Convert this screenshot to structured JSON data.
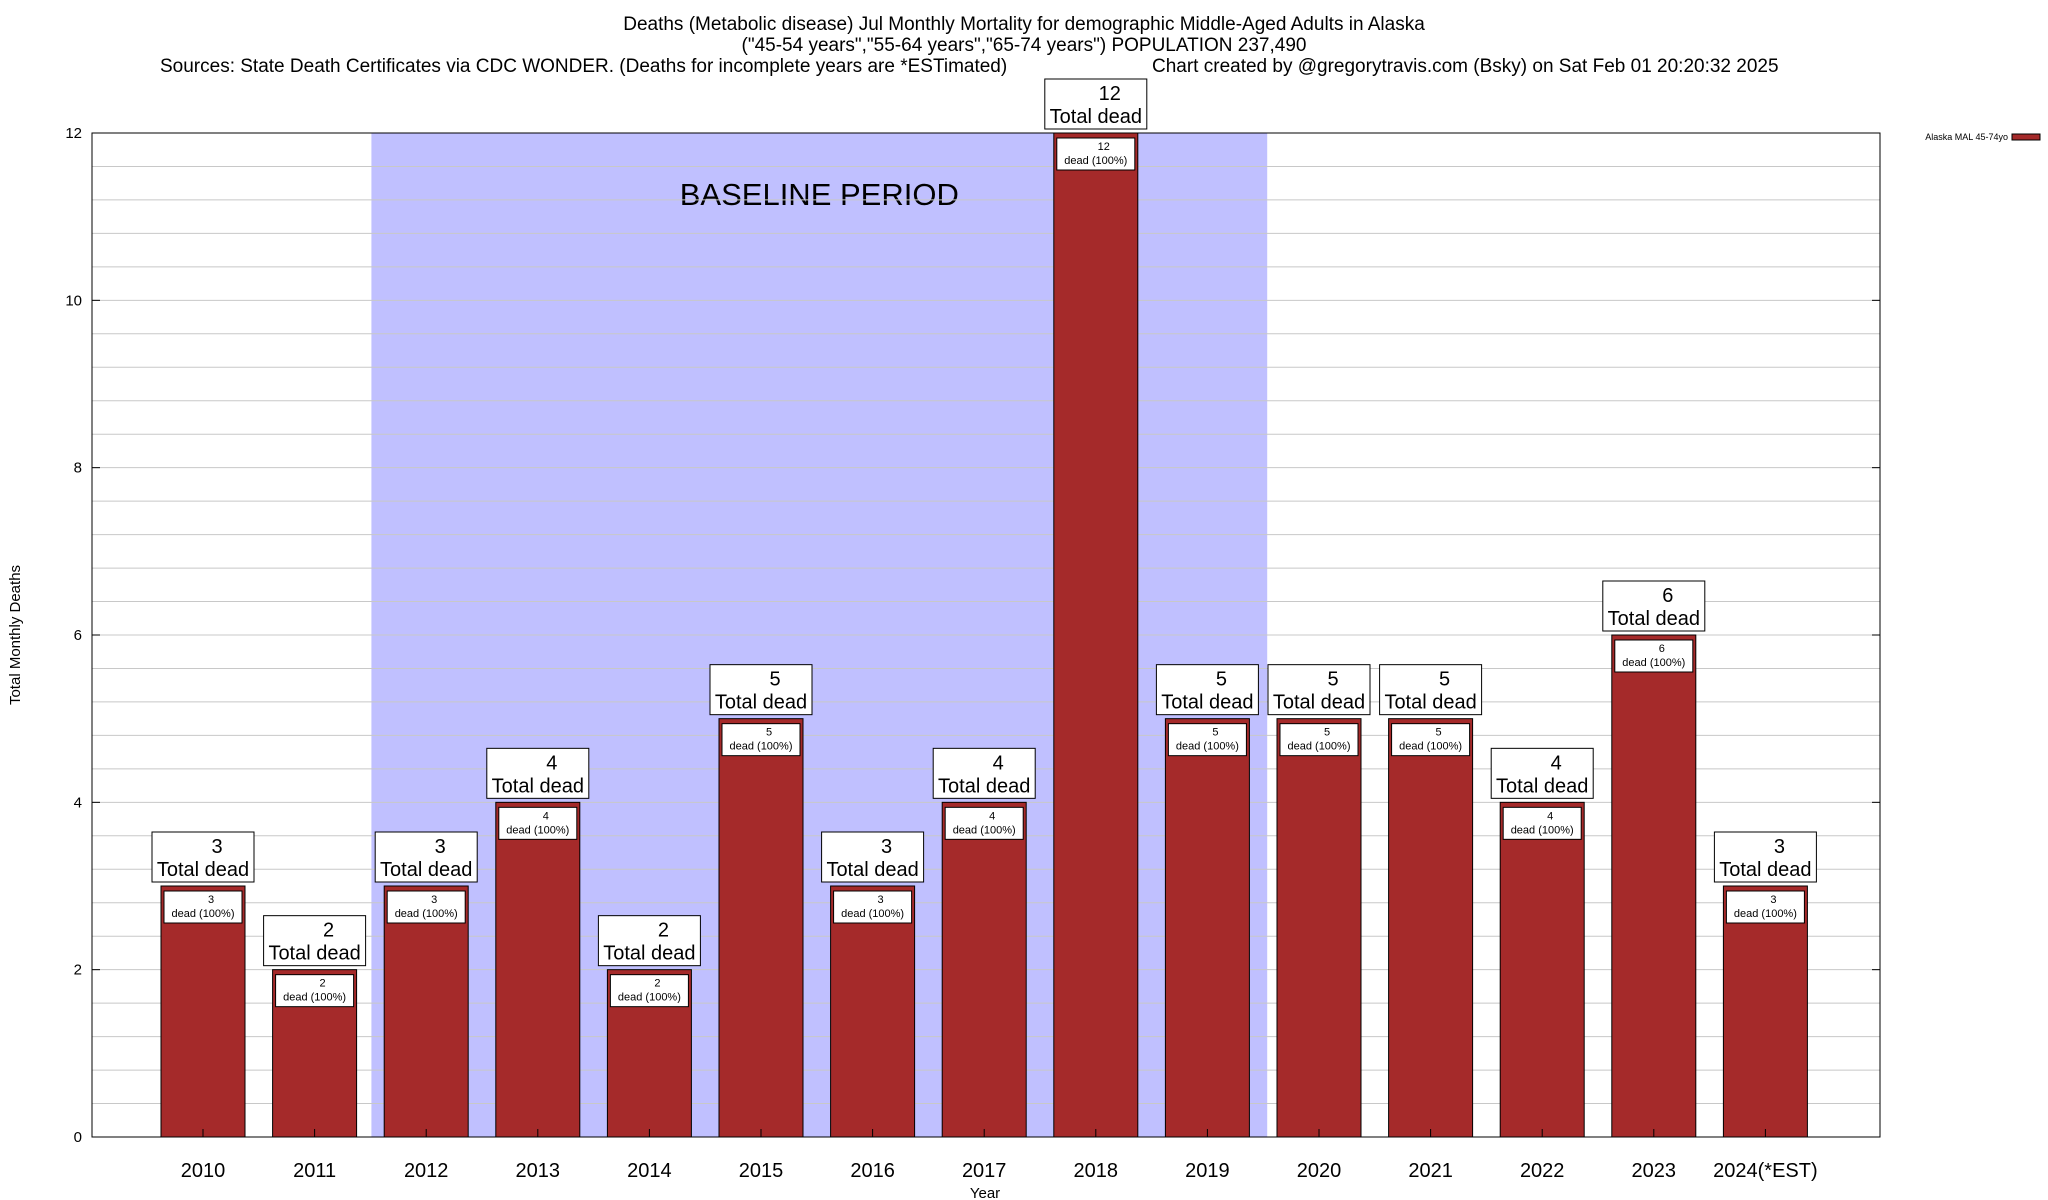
{
  "header": {
    "title_line1": "Deaths (Metabolic disease) Jul Monthly Mortality for demographic Middle-Aged Adults in Alaska",
    "title_line2": "(\"45-54 years\",\"55-64 years\",\"65-74 years\") POPULATION 237,490",
    "sources": "Sources: State Death Certificates via CDC WONDER. (Deaths for incomplete years are *ESTimated)",
    "credit": "Chart created by @gregorytravis.com (Bsky) on Sat Feb 01 20:20:32 2025"
  },
  "chart_data": {
    "type": "bar",
    "categories": [
      "2010",
      "2011",
      "2012",
      "2013",
      "2014",
      "2015",
      "2016",
      "2017",
      "2018",
      "2019",
      "2020",
      "2021",
      "2022",
      "2023",
      "2024(*EST)"
    ],
    "series": [
      {
        "name": "Alaska MAL 45-74yo",
        "values": [
          3,
          2,
          3,
          4,
          2,
          5,
          3,
          4,
          12,
          5,
          5,
          5,
          4,
          6,
          3
        ],
        "color": "#a52a2a"
      }
    ],
    "xlabel": "Year",
    "ylabel": "Total Monthly Deaths",
    "ylim": [
      0,
      12
    ],
    "yticks": [
      0,
      2,
      4,
      6,
      8,
      10,
      12
    ],
    "grid": true,
    "legend_position": "top-right",
    "baseline": {
      "label": "BASELINE PERIOD",
      "start_category": "2012",
      "end_category": "2019",
      "color": "#c0c0ff"
    },
    "top_label_suffix": "Total dead",
    "inner_label_suffix": "dead (100%)"
  }
}
